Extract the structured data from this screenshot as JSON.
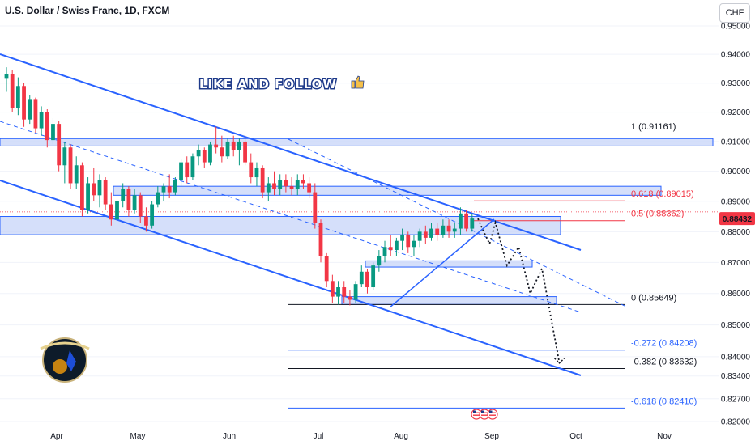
{
  "header": {
    "symbol_title": "U.S. Dollar / Swiss Franc, 1D, FXCM",
    "currency_button": "CHF"
  },
  "promo_text": "LIKE AND FOLLOW",
  "promo_icon": "thumbs-up-icon",
  "badge_icon": "traders-logo-icon",
  "colors": {
    "up": "#089981",
    "down": "#f23645",
    "channel": "#2962ff",
    "zone_fill": "#c7d4f8",
    "fib_red": "#f23645",
    "fib_blue": "#2962ff",
    "fib_black": "#131722"
  },
  "current_price": {
    "value": 0.88432,
    "label": "0.88432"
  },
  "chart_data": {
    "type": "candlestick",
    "title": "U.S. Dollar / Swiss Franc, 1D, FXCM",
    "y_scale": "log",
    "ylim": [
      0.82,
      0.955
    ],
    "y_ticks": [
      "0.95000",
      "0.94000",
      "0.93000",
      "0.92000",
      "0.91000",
      "0.90000",
      "0.89000",
      "0.88000",
      "0.87000",
      "0.86000",
      "0.85000",
      "0.84000",
      "0.83400",
      "0.82700",
      "0.82000"
    ],
    "x_ticks": [
      "Apr",
      "May",
      "Jun",
      "Jul",
      "Aug",
      "Sep",
      "Oct",
      "Nov"
    ],
    "fib_levels": [
      {
        "ratio": "1",
        "value": 0.91161,
        "label": "1 (0.91161)",
        "color": "fib_black"
      },
      {
        "ratio": "0.618",
        "value": 0.89015,
        "label": "0.618 (0.89015)",
        "color": "fib_red"
      },
      {
        "ratio": "0.5",
        "value": 0.88362,
        "label": "0.5 (0.88362)",
        "color": "fib_red"
      },
      {
        "ratio": "0",
        "value": 0.85649,
        "label": "0 (0.85649)",
        "color": "fib_black"
      },
      {
        "ratio": "-0.272",
        "value": 0.84208,
        "label": "-0.272 (0.84208)",
        "color": "fib_blue"
      },
      {
        "ratio": "-0.382",
        "value": 0.83632,
        "label": "-0.382 (0.83632)",
        "color": "fib_black"
      },
      {
        "ratio": "-0.618",
        "value": 0.8241,
        "label": "-0.618 (0.82410)",
        "color": "fib_blue"
      }
    ],
    "candles": [
      [
        0.9315,
        0.9355,
        0.927,
        0.933
      ],
      [
        0.933,
        0.9345,
        0.92,
        0.9215
      ],
      [
        0.9215,
        0.932,
        0.919,
        0.929
      ],
      [
        0.929,
        0.93,
        0.915,
        0.9175
      ],
      [
        0.9175,
        0.926,
        0.916,
        0.9245
      ],
      [
        0.9245,
        0.925,
        0.913,
        0.9145
      ],
      [
        0.9145,
        0.922,
        0.912,
        0.92
      ],
      [
        0.92,
        0.921,
        0.908,
        0.9105
      ],
      [
        0.9105,
        0.918,
        0.909,
        0.916
      ],
      [
        0.916,
        0.917,
        0.9,
        0.902
      ],
      [
        0.902,
        0.91,
        0.896,
        0.908
      ],
      [
        0.908,
        0.909,
        0.894,
        0.896
      ],
      [
        0.896,
        0.905,
        0.894,
        0.902
      ],
      [
        0.902,
        0.903,
        0.885,
        0.887
      ],
      [
        0.887,
        0.898,
        0.886,
        0.896
      ],
      [
        0.896,
        0.901,
        0.89,
        0.892
      ],
      [
        0.892,
        0.899,
        0.888,
        0.897
      ],
      [
        0.897,
        0.898,
        0.887,
        0.889
      ],
      [
        0.889,
        0.893,
        0.882,
        0.884
      ],
      [
        0.884,
        0.892,
        0.883,
        0.89
      ],
      [
        0.89,
        0.896,
        0.888,
        0.894
      ],
      [
        0.894,
        0.895,
        0.885,
        0.887
      ],
      [
        0.887,
        0.894,
        0.886,
        0.892
      ],
      [
        0.892,
        0.893,
        0.883,
        0.885
      ],
      [
        0.885,
        0.888,
        0.88,
        0.882
      ],
      [
        0.882,
        0.89,
        0.881,
        0.889
      ],
      [
        0.889,
        0.895,
        0.888,
        0.893
      ],
      [
        0.893,
        0.896,
        0.89,
        0.895
      ],
      [
        0.895,
        0.899,
        0.891,
        0.893
      ],
      [
        0.893,
        0.898,
        0.892,
        0.897
      ],
      [
        0.897,
        0.904,
        0.895,
        0.903
      ],
      [
        0.903,
        0.905,
        0.896,
        0.898
      ],
      [
        0.898,
        0.906,
        0.897,
        0.905
      ],
      [
        0.905,
        0.909,
        0.902,
        0.907
      ],
      [
        0.907,
        0.908,
        0.901,
        0.903
      ],
      [
        0.903,
        0.91,
        0.902,
        0.909
      ],
      [
        0.909,
        0.915,
        0.906,
        0.908
      ],
      [
        0.908,
        0.912,
        0.903,
        0.905
      ],
      [
        0.905,
        0.911,
        0.904,
        0.91
      ],
      [
        0.91,
        0.912,
        0.905,
        0.907
      ],
      [
        0.907,
        0.911,
        0.902,
        0.91
      ],
      [
        0.91,
        0.912,
        0.902,
        0.903
      ],
      [
        0.903,
        0.906,
        0.896,
        0.898
      ],
      [
        0.898,
        0.903,
        0.895,
        0.901
      ],
      [
        0.901,
        0.902,
        0.891,
        0.893
      ],
      [
        0.893,
        0.898,
        0.89,
        0.896
      ],
      [
        0.896,
        0.9,
        0.892,
        0.894
      ],
      [
        0.894,
        0.899,
        0.892,
        0.897
      ],
      [
        0.897,
        0.899,
        0.893,
        0.895
      ],
      [
        0.895,
        0.898,
        0.892,
        0.894
      ],
      [
        0.894,
        0.899,
        0.892,
        0.897
      ],
      [
        0.897,
        0.899,
        0.894,
        0.896
      ],
      [
        0.896,
        0.898,
        0.891,
        0.893
      ],
      [
        0.893,
        0.896,
        0.881,
        0.883
      ],
      [
        0.883,
        0.884,
        0.87,
        0.872
      ],
      [
        0.872,
        0.873,
        0.862,
        0.864
      ],
      [
        0.864,
        0.866,
        0.857,
        0.859
      ],
      [
        0.859,
        0.864,
        0.8565,
        0.862
      ],
      [
        0.862,
        0.864,
        0.857,
        0.859
      ],
      [
        0.859,
        0.861,
        0.8562,
        0.858
      ],
      [
        0.858,
        0.864,
        0.857,
        0.863
      ],
      [
        0.863,
        0.869,
        0.862,
        0.867
      ],
      [
        0.867,
        0.868,
        0.86,
        0.862
      ],
      [
        0.862,
        0.87,
        0.861,
        0.869
      ],
      [
        0.869,
        0.874,
        0.867,
        0.872
      ],
      [
        0.872,
        0.877,
        0.87,
        0.875
      ],
      [
        0.875,
        0.879,
        0.872,
        0.874
      ],
      [
        0.874,
        0.878,
        0.872,
        0.877
      ],
      [
        0.877,
        0.881,
        0.874,
        0.879
      ],
      [
        0.879,
        0.88,
        0.873,
        0.875
      ],
      [
        0.875,
        0.879,
        0.872,
        0.877
      ],
      [
        0.877,
        0.881,
        0.875,
        0.88
      ],
      [
        0.88,
        0.882,
        0.876,
        0.878
      ],
      [
        0.878,
        0.883,
        0.877,
        0.881
      ],
      [
        0.881,
        0.883,
        0.877,
        0.879
      ],
      [
        0.879,
        0.884,
        0.878,
        0.882
      ],
      [
        0.882,
        0.884,
        0.878,
        0.88
      ],
      [
        0.88,
        0.883,
        0.878,
        0.881
      ],
      [
        0.881,
        0.888,
        0.879,
        0.886
      ],
      [
        0.886,
        0.887,
        0.88,
        0.881
      ],
      [
        0.881,
        0.886,
        0.88,
        0.8843
      ]
    ],
    "projection": [
      {
        "date_index": 81,
        "price": 0.8843
      },
      {
        "date_index": 82,
        "price": 0.88
      },
      {
        "date_index": 83,
        "price": 0.876
      },
      {
        "date_index": 84,
        "price": 0.883
      },
      {
        "date_index": 86,
        "price": 0.869
      },
      {
        "date_index": 88,
        "price": 0.875
      },
      {
        "date_index": 90,
        "price": 0.86
      },
      {
        "date_index": 92,
        "price": 0.868
      },
      {
        "date_index": 95,
        "price": 0.838
      }
    ]
  }
}
